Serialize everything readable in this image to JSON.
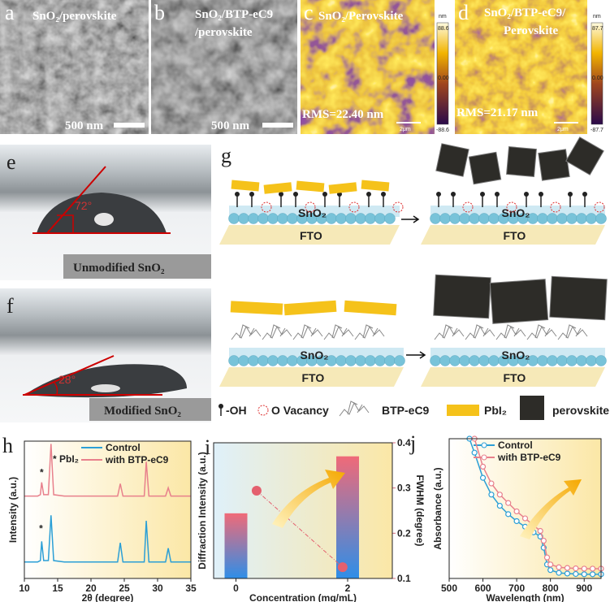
{
  "panels": {
    "a": {
      "label": "a",
      "title": "SnO₂/perovskite",
      "scale_bar": "500 nm"
    },
    "b": {
      "label": "b",
      "title_lines": [
        "SnO₂/BTP-eC9",
        "/perovskite"
      ],
      "scale_bar": "500 nm"
    },
    "c": {
      "label": "c",
      "title": "SnO₂/Perovskite",
      "rms": "RMS=22.40 nm",
      "scale_bar": "2μm",
      "colorbar": {
        "unit": "nm",
        "max": "88.6",
        "mid": "0.00",
        "min": "-88.6"
      }
    },
    "d": {
      "label": "d",
      "title_lines": [
        "SnO₂/BTP-eC9/",
        "Perovskite"
      ],
      "rms": "RMS=21.17 nm",
      "scale_bar": "2μm",
      "colorbar": {
        "unit": "nm",
        "max": "87.7",
        "mid": "0.00",
        "min": "-87.7"
      }
    },
    "e": {
      "label": "e",
      "angle": "72°",
      "caption": "Unmodified SnO₂"
    },
    "f": {
      "label": "f",
      "angle": "28°",
      "caption": "Modified SnO₂"
    },
    "g": {
      "label": "g",
      "layer": "SnO₂",
      "substrate": "FTO",
      "legend": [
        "-OH",
        "O Vacancy",
        "BTP-eC9",
        "PbI₂",
        "perovskite"
      ]
    }
  },
  "chart_data": [
    {
      "label": "h",
      "type": "line",
      "xlabel": "2θ (degree)",
      "ylabel": "Intensity (a.u.)",
      "xlim": [
        10,
        35
      ],
      "xticks": [
        10,
        15,
        20,
        25,
        30,
        35
      ],
      "ylim": [
        0,
        1
      ],
      "annotations": [
        {
          "text": "* PbI₂"
        },
        {
          "text": "*",
          "x": 12.6,
          "y": 0.75
        },
        {
          "text": "*",
          "x": 12.5,
          "y": 0.34
        }
      ],
      "series": [
        {
          "name": "Control",
          "color": "#2b9fd6",
          "x": [
            10,
            12,
            12.4,
            12.6,
            12.9,
            13.6,
            14.0,
            14.4,
            16,
            20,
            24,
            24.4,
            24.8,
            28,
            28.3,
            28.7,
            31.2,
            31.6,
            32,
            35
          ],
          "values": [
            0.12,
            0.12,
            0.13,
            0.27,
            0.13,
            0.13,
            0.46,
            0.13,
            0.12,
            0.12,
            0.12,
            0.26,
            0.12,
            0.12,
            0.42,
            0.12,
            0.12,
            0.22,
            0.12,
            0.12
          ]
        },
        {
          "name": "with BTP-eC9",
          "color": "#e8808c",
          "x": [
            10,
            12,
            12.4,
            12.6,
            12.9,
            13.6,
            14.0,
            14.4,
            16,
            20,
            24,
            24.4,
            24.8,
            28,
            28.3,
            28.7,
            31.2,
            31.6,
            32,
            35
          ],
          "values": [
            0.6,
            0.6,
            0.61,
            0.7,
            0.61,
            0.61,
            0.98,
            0.61,
            0.6,
            0.6,
            0.6,
            0.69,
            0.6,
            0.6,
            0.85,
            0.6,
            0.6,
            0.66,
            0.6,
            0.6
          ]
        }
      ]
    },
    {
      "label": "i",
      "type": "bar",
      "xlabel": "Concentration (mg/mL)",
      "ylabel": "Diffraction Intensity (a.u.)",
      "y2label": "FWHM (degree)",
      "xlim": [
        -0.4,
        2.8
      ],
      "xticks": [
        0,
        2
      ],
      "ylim": [
        0,
        1
      ],
      "x": [
        0,
        2
      ],
      "values": [
        0.48,
        0.9
      ],
      "y2lim": [
        0.1,
        0.4
      ],
      "y2ticks": [
        0.1,
        0.2,
        0.3,
        0.4
      ],
      "fwhm": {
        "axis": "y2",
        "color": "#e4606e",
        "x": [
          0.37,
          1.91
        ],
        "values": [
          0.294,
          0.125
        ]
      }
    },
    {
      "label": "j",
      "type": "line",
      "xlabel": "Wavelength (nm)",
      "ylabel": "Absorbance (a.u.)",
      "xlim": [
        500,
        950
      ],
      "xticks": [
        500,
        600,
        700,
        800,
        900
      ],
      "ylim": [
        0,
        1
      ],
      "series": [
        {
          "name": "Control",
          "color": "#2b9fd6",
          "x": [
            560,
            575,
            600,
            625,
            650,
            675,
            700,
            725,
            750,
            770,
            780,
            790,
            800,
            825,
            850,
            875,
            900,
            925,
            950
          ],
          "values": [
            1.0,
            0.9,
            0.72,
            0.6,
            0.52,
            0.46,
            0.41,
            0.37,
            0.33,
            0.3,
            0.22,
            0.1,
            0.06,
            0.04,
            0.035,
            0.032,
            0.03,
            0.03,
            0.03
          ]
        },
        {
          "name": "with BTP-eC9",
          "color": "#e8808c",
          "x": [
            575,
            600,
            625,
            650,
            675,
            700,
            725,
            750,
            770,
            780,
            790,
            800,
            825,
            850,
            875,
            900,
            925,
            950
          ],
          "values": [
            1.0,
            0.8,
            0.68,
            0.6,
            0.54,
            0.48,
            0.43,
            0.38,
            0.34,
            0.27,
            0.15,
            0.1,
            0.08,
            0.075,
            0.072,
            0.07,
            0.07,
            0.07
          ]
        }
      ]
    }
  ]
}
